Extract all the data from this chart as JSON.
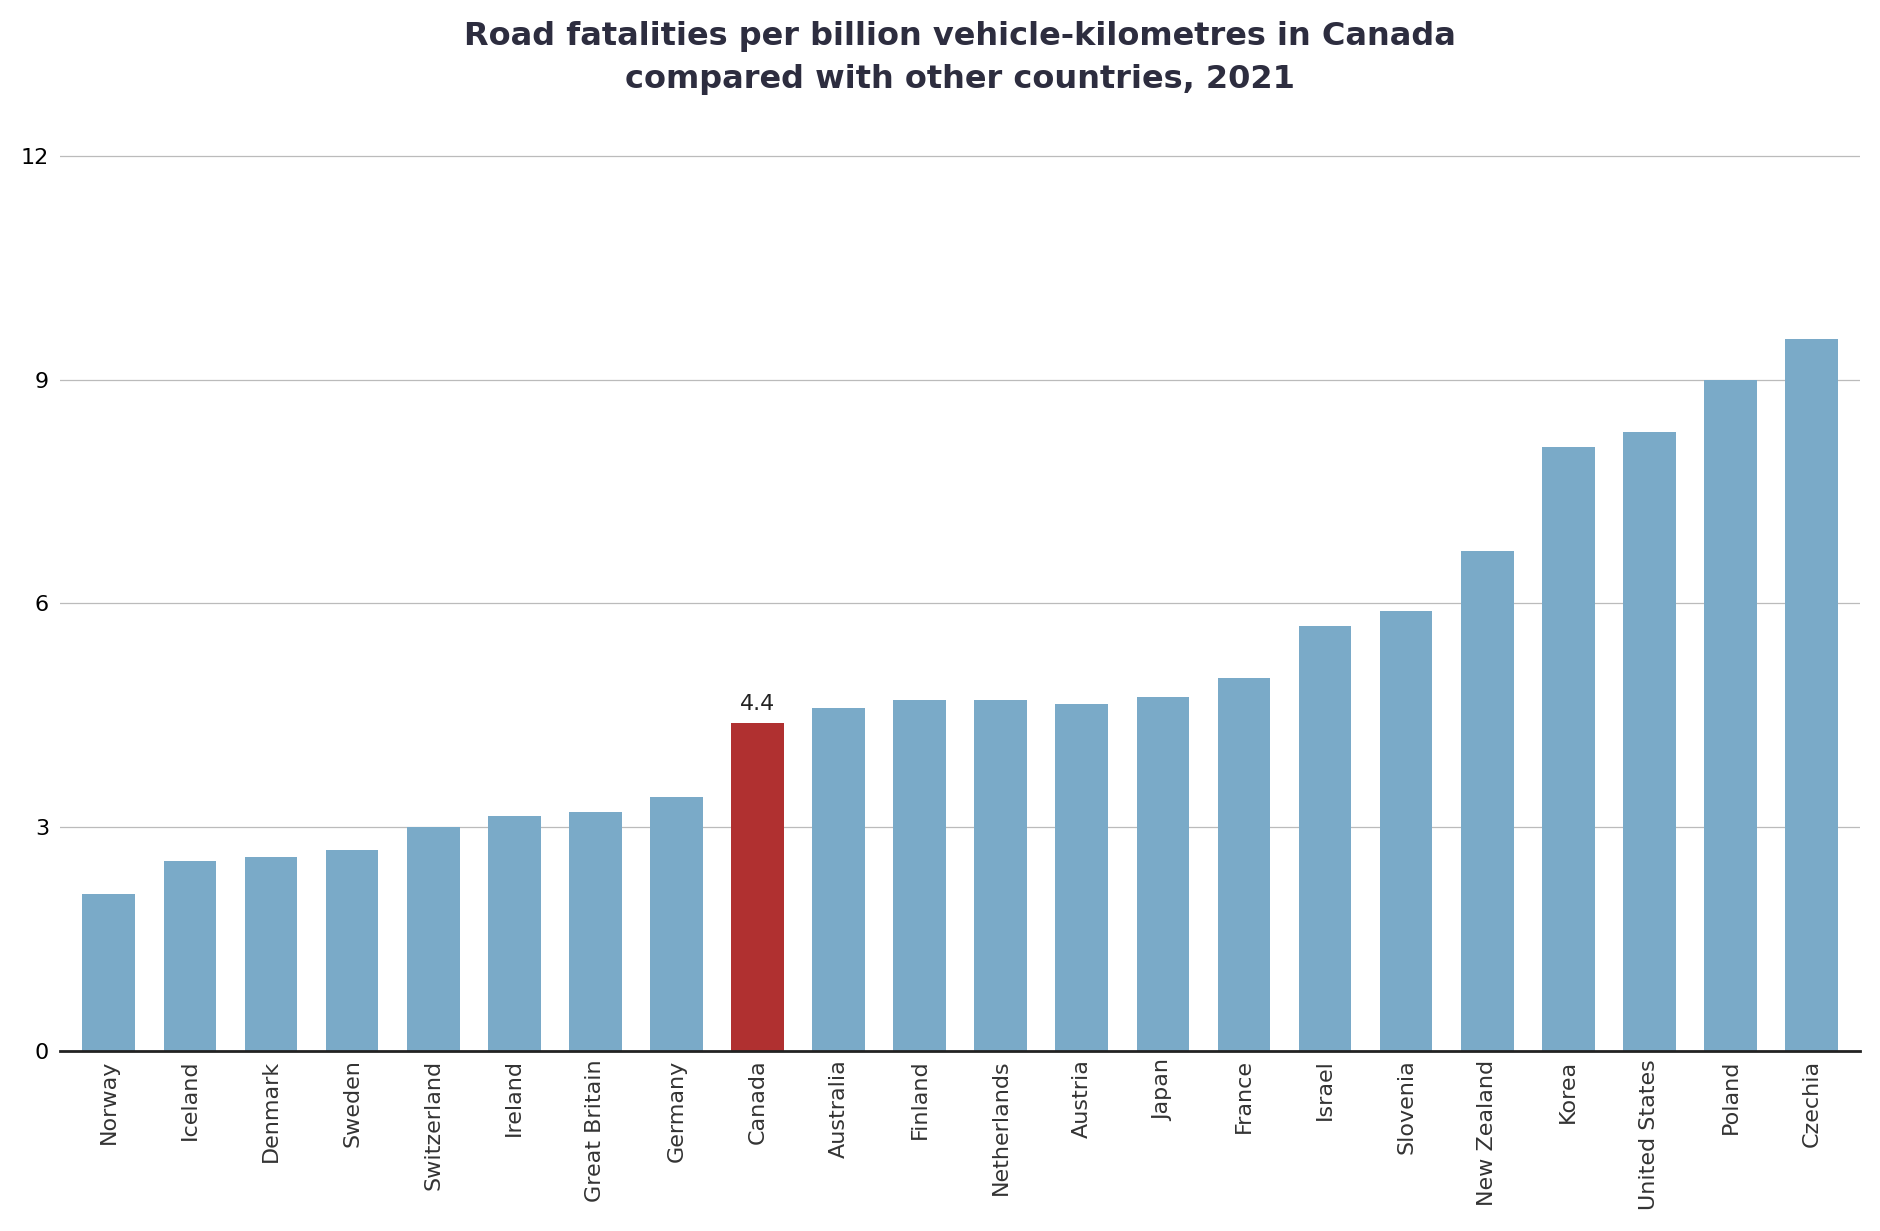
{
  "title": "Road fatalities per billion vehicle-kilometres in Canada\ncompared with other countries, 2021",
  "countries": [
    "Norway",
    "Iceland",
    "Denmark",
    "Sweden",
    "Switzerland",
    "Ireland",
    "Great Britain",
    "Germany",
    "Canada",
    "Australia",
    "Finland",
    "Netherlands",
    "Austria",
    "Japan",
    "France",
    "Israel",
    "Slovenia",
    "New Zealand",
    "Korea",
    "United States",
    "Poland",
    "Czechia"
  ],
  "values": [
    2.1,
    2.55,
    2.6,
    2.7,
    3.0,
    3.15,
    3.2,
    3.4,
    4.4,
    4.6,
    4.7,
    4.7,
    4.65,
    4.75,
    5.0,
    5.7,
    5.9,
    6.7,
    8.1,
    8.3,
    9.0,
    9.55
  ],
  "bar_color_default": "#7aaac8",
  "bar_color_canada": "#b03030",
  "canada_label": "4.4",
  "ylim": [
    0,
    12.5
  ],
  "yticks": [
    0,
    3,
    6,
    9,
    12
  ],
  "background_color": "#ffffff",
  "title_fontsize": 23,
  "tick_fontsize": 16,
  "label_fontsize": 16,
  "grid_color": "#bbbbbb",
  "annotation_fontsize": 16,
  "title_color": "#2d2d3f",
  "bar_width": 0.65
}
